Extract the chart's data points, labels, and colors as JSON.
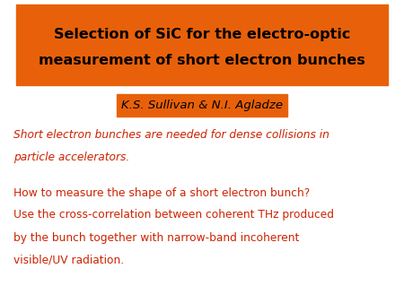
{
  "title_line1": "Selection of SiC for the electro-optic",
  "title_line2": "measurement of short electron bunches",
  "title_bg_color": "#E8610A",
  "title_text_color": "#000000",
  "author_text": "K.S. Sullivan & N.I. Agladze",
  "author_bg_color": "#E8610A",
  "author_text_color": "#000000",
  "italic_text_line1": "Short electron bunches are needed for dense collisions in",
  "italic_text_line2": "particle accelerators.",
  "italic_color": "#CC2200",
  "body_line1": "How to measure the shape of a short electron bunch?",
  "body_line2": "Use the cross-correlation between coherent THz produced",
  "body_line3": "by the bunch together with narrow-band incoherent",
  "body_line4": "visible/UV radiation.",
  "body_color": "#CC2200",
  "bg_color": "#FFFFFF"
}
